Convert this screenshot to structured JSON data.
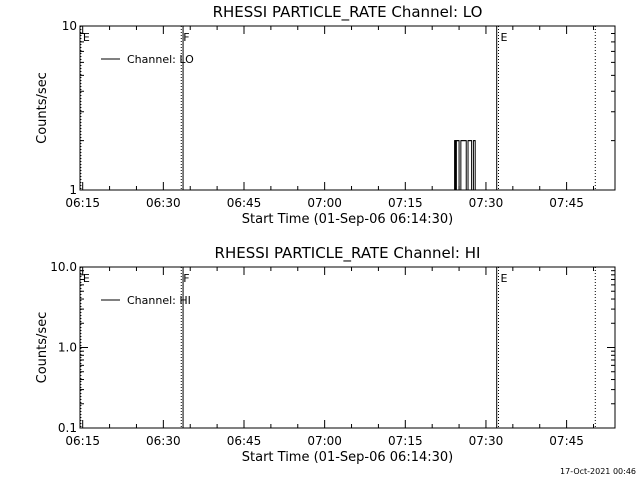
{
  "chart_data": [
    {
      "type": "line",
      "title": "RHESSI PARTICLE_RATE Channel: LO",
      "xlabel": "Start Time (01-Sep-06 06:14:30)",
      "ylabel": "Counts/sec",
      "y_scale": "log",
      "ylim": [
        1,
        10
      ],
      "xlim": [
        "06:14:30",
        "07:54:00"
      ],
      "x_ticks": [
        "06:15",
        "06:30",
        "06:45",
        "07:00",
        "07:15",
        "07:30",
        "07:45"
      ],
      "y_ticks": [
        "1",
        "10"
      ],
      "grid": false,
      "legend": {
        "placement": "top-left",
        "entries": [
          "Channel: LO"
        ]
      },
      "series": [
        {
          "name": "Channel: LO",
          "x": [
            "07:24:00",
            "07:24:10",
            "07:24:20",
            "07:24:30",
            "07:24:40",
            "07:25:00",
            "07:25:20",
            "07:25:40",
            "07:26:00",
            "07:26:20",
            "07:26:40",
            "07:27:00",
            "07:27:20",
            "07:27:40",
            "07:28:00"
          ],
          "values": [
            1,
            2,
            1,
            2,
            2,
            1,
            2,
            2,
            2,
            1,
            2,
            2,
            1,
            2,
            1
          ]
        }
      ],
      "vlines": [
        {
          "label": "E",
          "x": "06:14:40",
          "style": "dotted"
        },
        {
          "label": "F",
          "x": "06:33:20",
          "style": "dotted"
        },
        {
          "label": "",
          "x": "06:33:40",
          "style": "solid"
        },
        {
          "label": "",
          "x": "07:32:00",
          "style": "solid"
        },
        {
          "label": "E",
          "x": "07:32:20",
          "style": "dotted"
        },
        {
          "label": "",
          "x": "07:50:20",
          "style": "dotted"
        }
      ]
    },
    {
      "type": "line",
      "title": "RHESSI PARTICLE_RATE Channel: HI",
      "xlabel": "Start Time (01-Sep-06 06:14:30)",
      "ylabel": "Counts/sec",
      "y_scale": "log",
      "ylim": [
        0.1,
        10
      ],
      "xlim": [
        "06:14:30",
        "07:54:00"
      ],
      "x_ticks": [
        "06:15",
        "06:30",
        "06:45",
        "07:00",
        "07:15",
        "07:30",
        "07:45"
      ],
      "y_ticks": [
        "0.1",
        "1.0",
        "10.0"
      ],
      "grid": false,
      "legend": {
        "placement": "top-left",
        "entries": [
          "Channel: HI"
        ]
      },
      "series": [
        {
          "name": "Channel: HI",
          "x": [],
          "values": []
        }
      ],
      "vlines": [
        {
          "label": "E",
          "x": "06:14:40",
          "style": "dotted"
        },
        {
          "label": "F",
          "x": "06:33:20",
          "style": "dotted"
        },
        {
          "label": "",
          "x": "06:33:40",
          "style": "solid"
        },
        {
          "label": "",
          "x": "07:32:00",
          "style": "solid"
        },
        {
          "label": "E",
          "x": "07:32:20",
          "style": "dotted"
        },
        {
          "label": "",
          "x": "07:50:20",
          "style": "dotted"
        }
      ]
    }
  ],
  "timestamp": "17-Oct-2021 00:46"
}
